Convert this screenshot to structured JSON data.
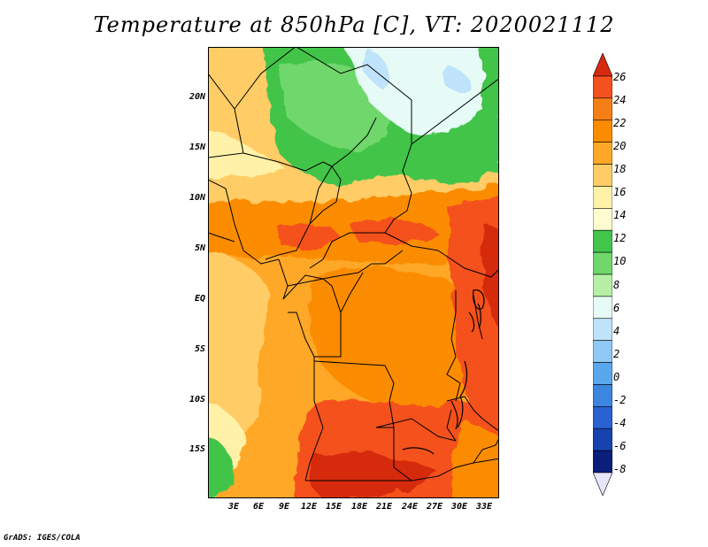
{
  "title": "Temperature at 850hPa [C], VT: 2020021112",
  "credit": "GrADS: IGES/COLA",
  "map": {
    "lat_labels": [
      "20N",
      "15N",
      "10N",
      "5N",
      "EQ",
      "5S",
      "10S",
      "15S"
    ],
    "lat_values": [
      20,
      15,
      10,
      5,
      0,
      -5,
      -10,
      -15
    ],
    "lon_labels": [
      "3E",
      "6E",
      "9E",
      "12E",
      "15E",
      "18E",
      "21E",
      "24E",
      "27E",
      "30E",
      "33E"
    ],
    "lon_values": [
      3,
      6,
      9,
      12,
      15,
      18,
      21,
      24,
      27,
      30,
      33
    ],
    "lon_range": [
      0.5,
      35.3
    ],
    "lat_range": [
      -19.8,
      24.5
    ]
  },
  "colorbar": {
    "levels": [
      "26",
      "24",
      "22",
      "20",
      "18",
      "16",
      "14",
      "12",
      "10",
      "8",
      "6",
      "4",
      "2",
      "0",
      "-2",
      "-4",
      "-6",
      "-8"
    ],
    "colors": [
      "#d62a10",
      "#f4511e",
      "#f57f17",
      "#fb8c00",
      "#ffa726",
      "#ffcc66",
      "#fff2a8",
      "#fffdd0",
      "#43c44a",
      "#6fd76c",
      "#b6f0a6",
      "#e6fbf5",
      "#bfe3fb",
      "#8ec8f5",
      "#5aa7ee",
      "#3d86e0",
      "#2b62d1",
      "#1643b0",
      "#0a1f7a",
      "#e6e6fa"
    ]
  }
}
